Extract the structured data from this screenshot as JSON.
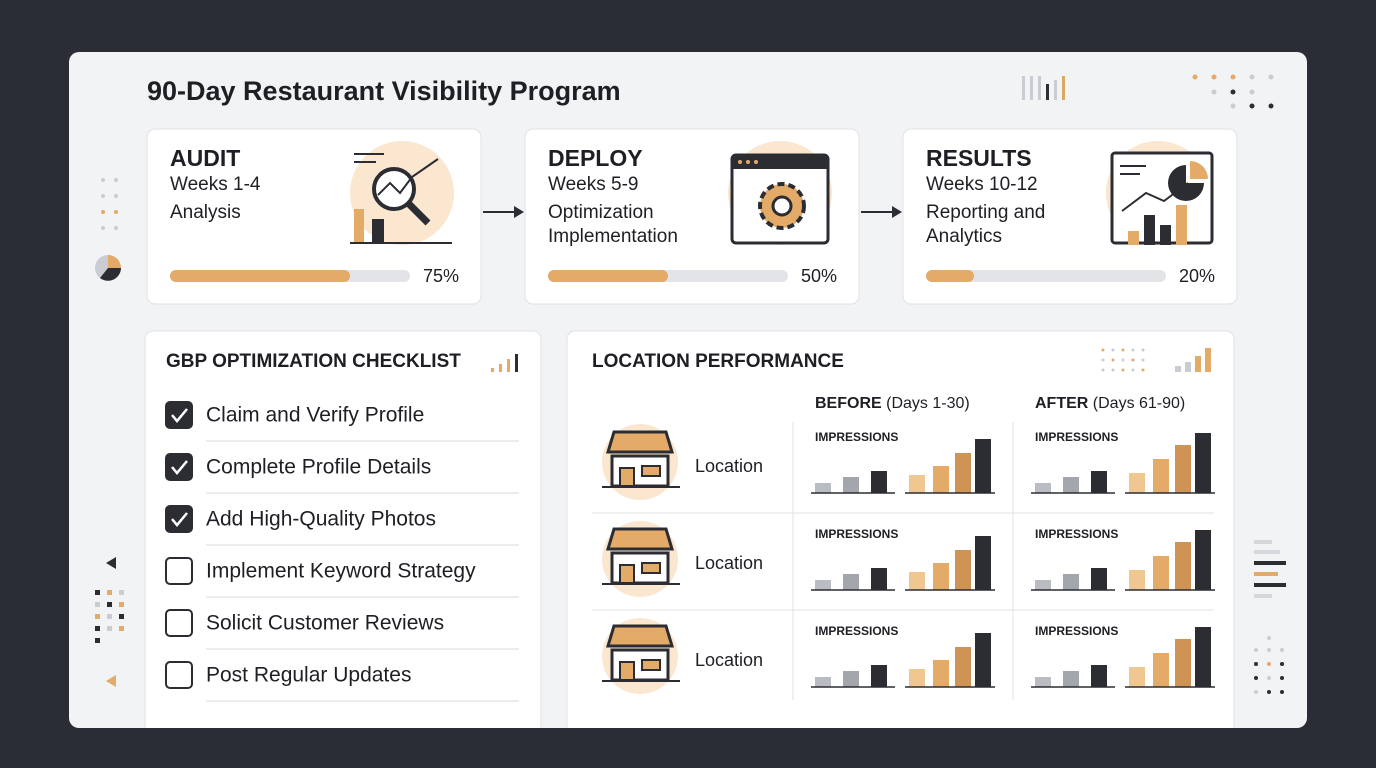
{
  "title": "90-Day Restaurant Visibility Program",
  "phases": [
    {
      "name": "AUDIT",
      "weeks": "Weeks 1-4",
      "description": [
        "Analysis"
      ],
      "progress": 75,
      "progress_label": "75%"
    },
    {
      "name": "DEPLOY",
      "weeks": "Weeks 5-9",
      "description": [
        "Optimization",
        "Implementation"
      ],
      "progress": 50,
      "progress_label": "50%"
    },
    {
      "name": "RESULTS",
      "weeks": "Weeks 10-12",
      "description": [
        "Reporting and",
        "Analytics"
      ],
      "progress": 20,
      "progress_label": "20%"
    }
  ],
  "checklist": {
    "title": "GBP OPTIMIZATION CHECKLIST",
    "items": [
      {
        "label": "Claim and Verify Profile",
        "checked": true
      },
      {
        "label": "Complete Profile Details",
        "checked": true
      },
      {
        "label": "Add High-Quality Photos",
        "checked": true
      },
      {
        "label": "Implement Keyword Strategy",
        "checked": false
      },
      {
        "label": "Solicit Customer Reviews",
        "checked": false
      },
      {
        "label": "Post Regular Updates",
        "checked": false
      }
    ]
  },
  "location_performance": {
    "title": "LOCATION PERFORMANCE",
    "before_label": "BEFORE",
    "before_range": "(Days 1-30)",
    "after_label": "AFTER",
    "after_range": "(Days 61-90)",
    "bar_colors": [
      "#b9bcc3",
      "#a3a6ad",
      "#2b2d33",
      "#f0c791",
      "#e3aa68",
      "#cf9355",
      "#2b2d33"
    ],
    "rows": [
      {
        "label": "Location",
        "before": {
          "label": "IMPRESSIONS",
          "values": [
            10,
            16,
            22,
            18,
            27,
            40,
            54
          ]
        },
        "after": {
          "label": "IMPRESSIONS",
          "values": [
            10,
            16,
            22,
            20,
            34,
            48,
            60
          ]
        }
      },
      {
        "label": "Location",
        "before": {
          "label": "IMPRESSIONS",
          "values": [
            10,
            16,
            22,
            18,
            27,
            40,
            54
          ]
        },
        "after": {
          "label": "IMPRESSIONS",
          "values": [
            10,
            16,
            22,
            20,
            34,
            48,
            60
          ]
        }
      },
      {
        "label": "Location",
        "before": {
          "label": "IMPRESSIONS",
          "values": [
            10,
            16,
            22,
            18,
            27,
            40,
            54
          ]
        },
        "after": {
          "label": "IMPRESSIONS",
          "values": [
            10,
            16,
            22,
            20,
            34,
            48,
            60
          ]
        }
      }
    ]
  }
}
